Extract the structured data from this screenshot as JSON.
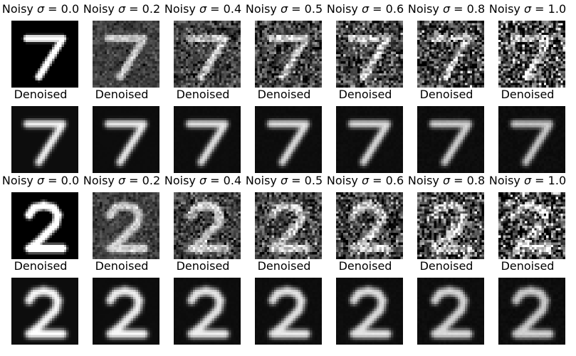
{
  "figure": {
    "noise_sigmas": [
      "0.0",
      "0.2",
      "0.4",
      "0.5",
      "0.6",
      "0.8",
      "1.0"
    ],
    "noisy_label_prefix": "Noisy ",
    "sigma_symbol": "σ",
    "equals": " = ",
    "denoised_label": "Denoised",
    "digits": [
      "7",
      "2"
    ],
    "rows": [
      {
        "kind": "noisy",
        "digit": "7",
        "titles": [
          "Noisy σ = 0.0",
          "Noisy σ = 0.2",
          "Noisy σ = 0.4",
          "Noisy σ = 0.5",
          "Noisy σ = 0.6",
          "Noisy σ = 0.8",
          "Noisy σ = 1.0"
        ]
      },
      {
        "kind": "denoised",
        "digit": "7",
        "titles": [
          "Denoised",
          "Denoised",
          "Denoised",
          "Denoised",
          "Denoised",
          "Denoised",
          "Denoised"
        ]
      },
      {
        "kind": "noisy",
        "digit": "2",
        "titles": [
          "Noisy σ = 0.0",
          "Noisy σ = 0.2",
          "Noisy σ = 0.4",
          "Noisy σ = 0.5",
          "Noisy σ = 0.6",
          "Noisy σ = 0.8",
          "Noisy σ = 1.0"
        ]
      },
      {
        "kind": "denoised",
        "digit": "2",
        "titles": [
          "Denoised",
          "Denoised",
          "Denoised",
          "Denoised",
          "Denoised",
          "Denoised",
          "Denoised"
        ]
      }
    ]
  }
}
